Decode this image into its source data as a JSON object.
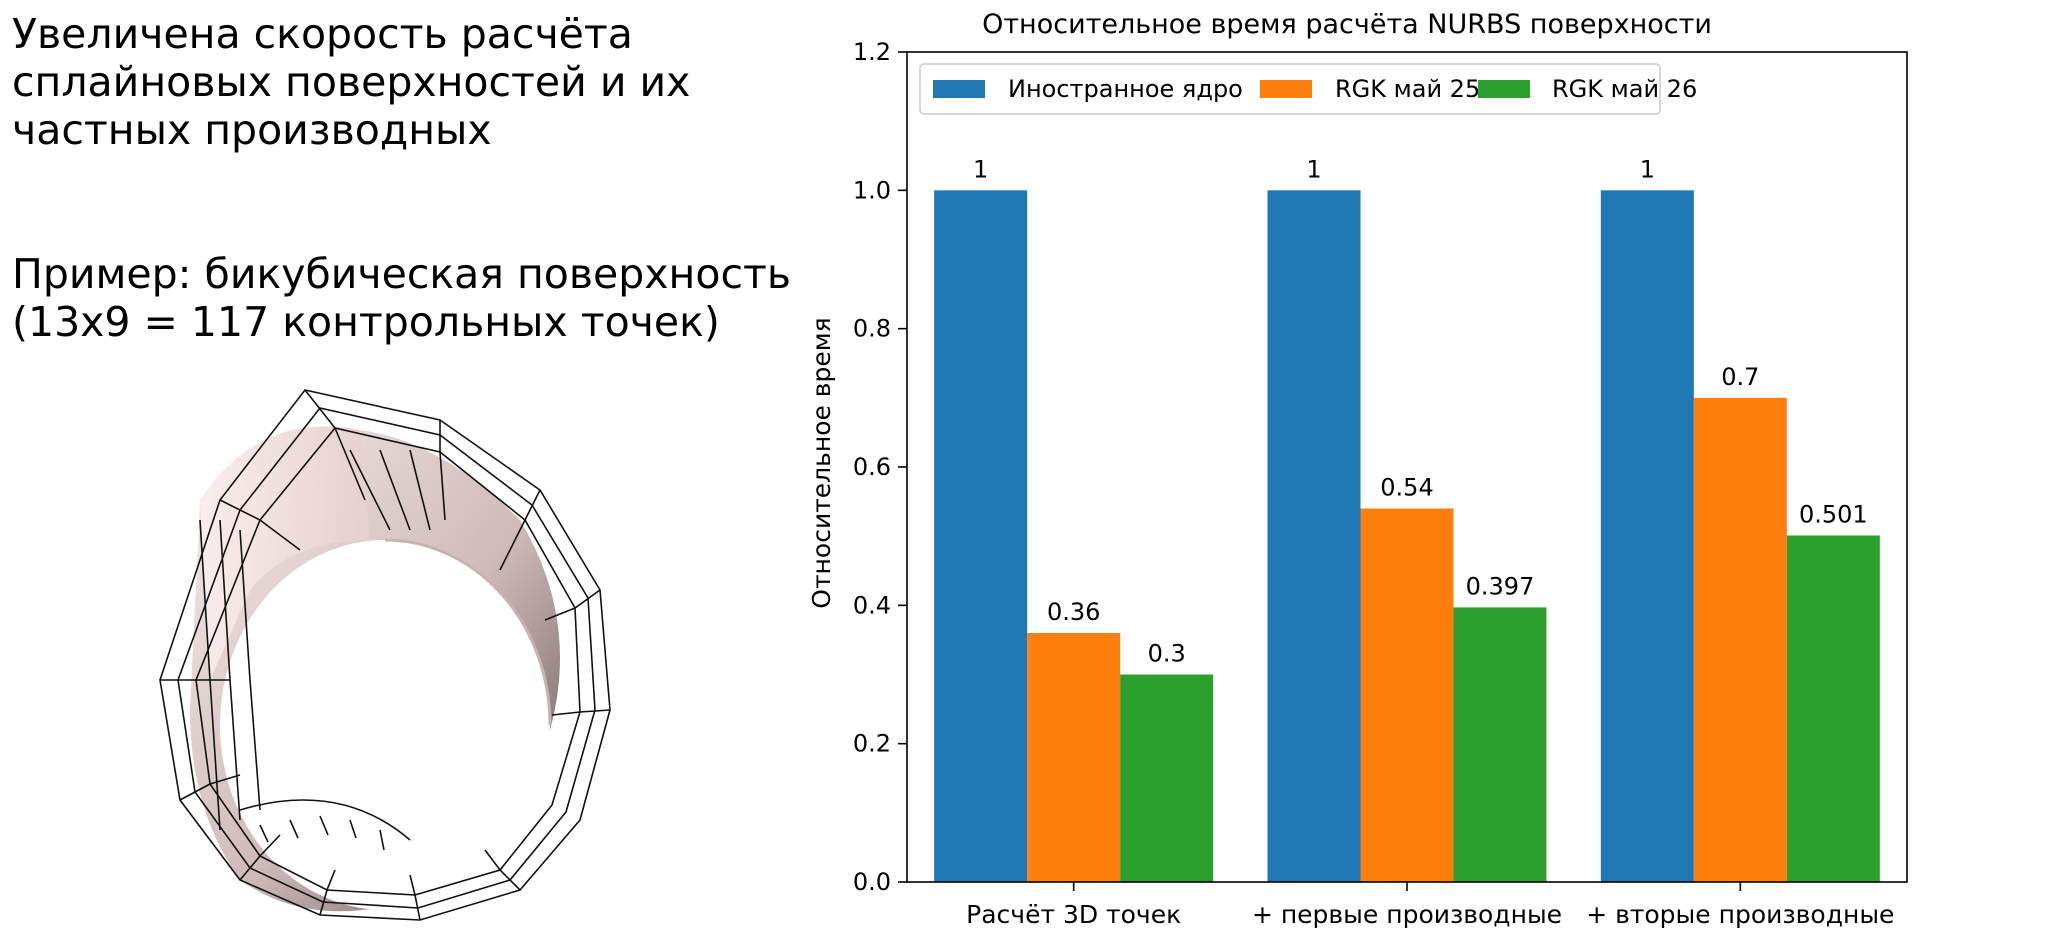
{
  "text": {
    "headline_lines": [
      "Увеличена скорость расчёта",
      "сплайновых поверхностей и их",
      "частных производных"
    ],
    "example_lines": [
      "Пример: бикубическая поверхность",
      "(13x9 = 117 контрольных точек)"
    ]
  },
  "chart_data": {
    "type": "bar",
    "title": "Относительное время расчёта NURBS поверхности",
    "xlabel": "",
    "ylabel": "Относительное время",
    "categories": [
      "Расчёт 3D точек",
      "+ первые производные",
      "+ вторые производные"
    ],
    "series": [
      {
        "name": "Иностранное ядро",
        "color": "#1f77b4",
        "values": [
          1,
          1,
          1
        ],
        "labels": [
          "1",
          "1",
          "1"
        ]
      },
      {
        "name": "RGK май 25",
        "color": "#ff7f0e",
        "values": [
          0.36,
          0.54,
          0.7
        ],
        "labels": [
          "0.36",
          "0.54",
          "0.7"
        ]
      },
      {
        "name": "RGK май 26",
        "color": "#2ca02c",
        "values": [
          0.3,
          0.397,
          0.501
        ],
        "labels": [
          "0.3",
          "0.397",
          "0.501"
        ]
      }
    ],
    "ylim": [
      0,
      1.2
    ],
    "yticks": [
      "0.0",
      "0.2",
      "0.4",
      "0.6",
      "0.8",
      "1.0",
      "1.2"
    ],
    "grid": false,
    "legend": "top-left"
  }
}
